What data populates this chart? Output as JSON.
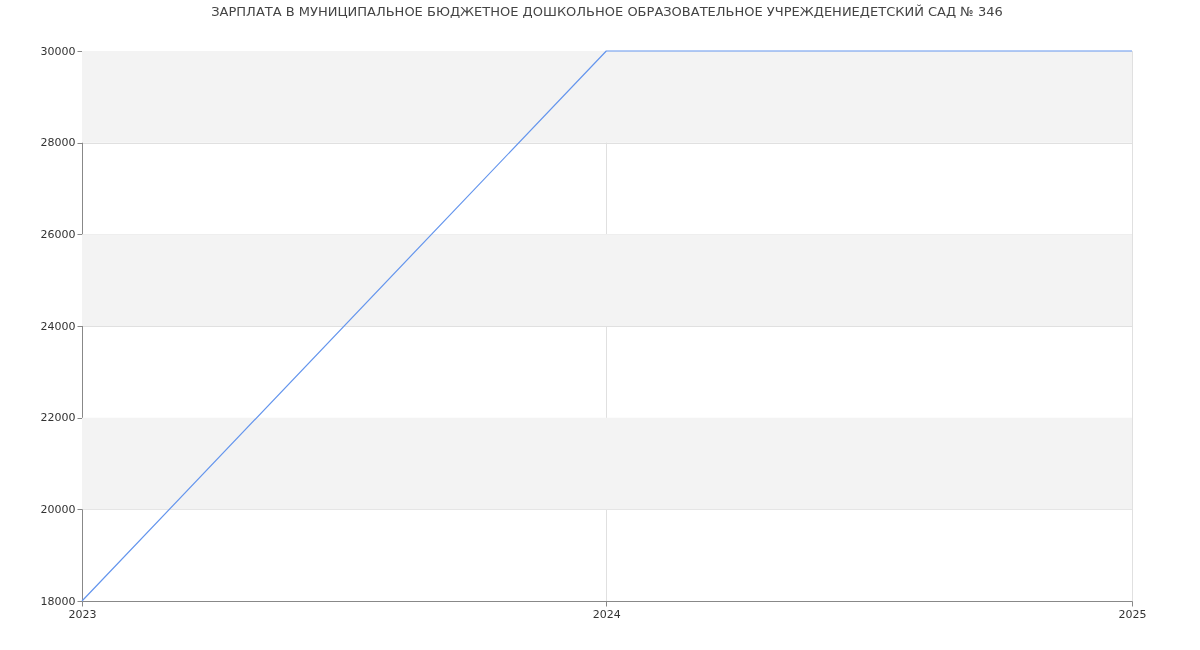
{
  "chart_data": {
    "type": "line",
    "title": "ЗАРПЛАТА В МУНИЦИПАЛЬНОЕ БЮДЖЕТНОЕ ДОШКОЛЬНОЕ ОБРАЗОВАТЕЛЬНОЕ УЧРЕЖДЕНИЕДЕТСКИЙ САД № 346",
    "x": [
      "2023",
      "2024",
      "2025"
    ],
    "series": [
      {
        "color": "#6495ed",
        "values": [
          18000,
          30000,
          30000
        ]
      }
    ],
    "xlim": [
      "2023",
      "2025"
    ],
    "xticks": [
      {
        "value": "2023",
        "label": "2023"
      },
      {
        "value": "2024",
        "label": "2024"
      },
      {
        "value": "2025",
        "label": "2025"
      }
    ],
    "ylim": [
      18000,
      30000
    ],
    "yticks": [
      18000,
      20000,
      22000,
      24000,
      26000,
      28000,
      30000
    ],
    "bands": [
      {
        "axis": "y",
        "from": 20000,
        "to": 22000,
        "color": "#f3f3f3"
      },
      {
        "axis": "y",
        "from": 24000,
        "to": 26000,
        "color": "#f3f3f3"
      },
      {
        "axis": "y",
        "from": 28000,
        "to": 30000,
        "color": "#f3f3f3"
      }
    ],
    "grid": true,
    "legend": false,
    "marker": "none",
    "line_style": "solid"
  }
}
